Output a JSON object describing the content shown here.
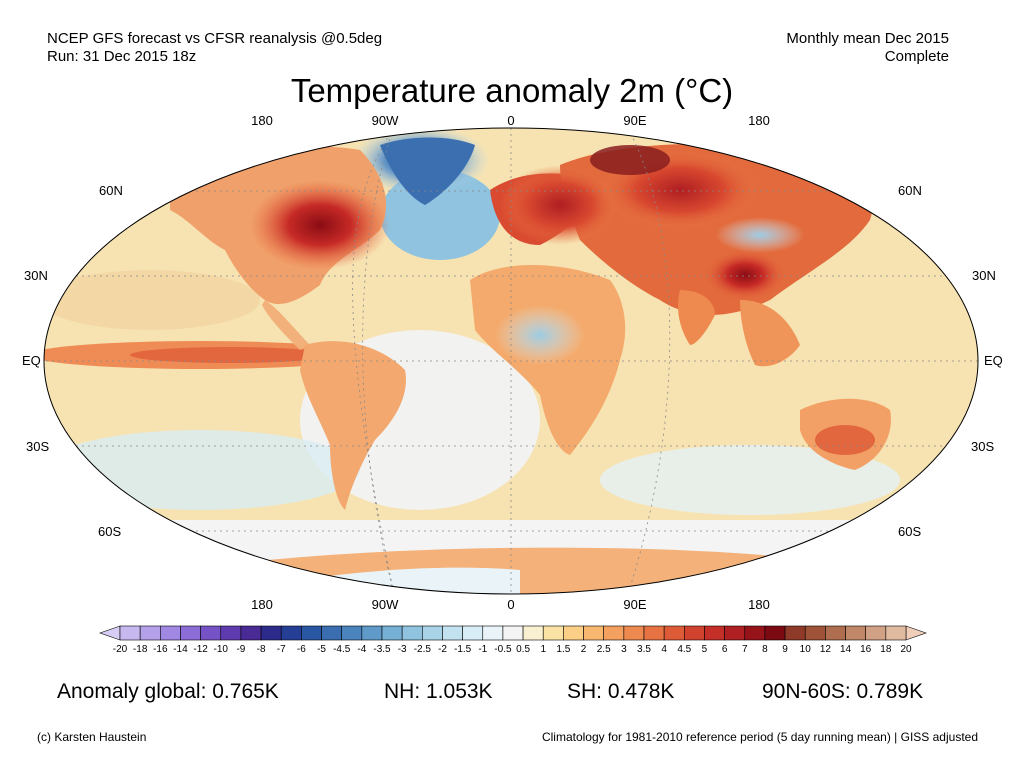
{
  "header": {
    "line1": "NCEP GFS forecast vs CFSR reanalysis @0.5deg",
    "line2": "Run: 31 Dec 2015 18z",
    "right1": "Monthly mean Dec 2015",
    "right2": "Complete"
  },
  "title": "Temperature anomaly 2m (°C)",
  "axis_labels": {
    "top": [
      "180",
      "90W",
      "0",
      "90E",
      "180"
    ],
    "bottom": [
      "180",
      "90W",
      "0",
      "90E",
      "180"
    ],
    "left": [
      "60N",
      "30N",
      "EQ",
      "30S",
      "60S"
    ],
    "right": [
      "60N",
      "30N",
      "EQ",
      "30S",
      "60S"
    ]
  },
  "colorbar": {
    "ticks": [
      "-20",
      "-18",
      "-16",
      "-14",
      "-12",
      "-10",
      "-9",
      "-8",
      "-7",
      "-6",
      "-5",
      "-4.5",
      "-4",
      "-3.5",
      "-3",
      "-2.5",
      "-2",
      "-1.5",
      "-1",
      "-0.5",
      "0.5",
      "1",
      "1.5",
      "2",
      "2.5",
      "3",
      "3.5",
      "4",
      "4.5",
      "5",
      "6",
      "7",
      "8",
      "9",
      "10",
      "12",
      "14",
      "16",
      "18",
      "20"
    ],
    "colors": [
      "#c8b8f0",
      "#b5a0ea",
      "#a188e2",
      "#8c6dd8",
      "#7552c6",
      "#5f3bb0",
      "#4a2a95",
      "#2c2b8c",
      "#253f96",
      "#2a57a3",
      "#3a6eb0",
      "#4b84bd",
      "#5f9ac8",
      "#76b0d4",
      "#8fc3df",
      "#a9d4e8",
      "#c2e2ef",
      "#d8edf5",
      "#eaf4f8",
      "#f4f4f4",
      "#f8f0d0",
      "#fbe3a6",
      "#fbcf86",
      "#f8b870",
      "#f4a05e",
      "#ee8a4f",
      "#e77343",
      "#de5b38",
      "#d2432f",
      "#c42f28",
      "#b01f22",
      "#961319",
      "#7c0a12",
      "#8f3a28",
      "#9e5338",
      "#b06e50",
      "#c08868",
      "#d0a184",
      "#e0bba0"
    ],
    "low_end_color": "#d6ccf4",
    "high_end_color": "#f0cdb8"
  },
  "stats": {
    "global": "Anomaly global: 0.765K",
    "nh": "NH: 1.053K",
    "sh": "SH: 0.478K",
    "arctic": "90N-60S: 0.789K"
  },
  "footer": {
    "left": "(c) Karsten Haustein",
    "right": "Climatology for 1981-2010 reference period (5 day running mean) | GISS adjusted"
  },
  "map": {
    "ocean_base_color": "#f6e6b8",
    "land_base_color": "#f2a972"
  }
}
